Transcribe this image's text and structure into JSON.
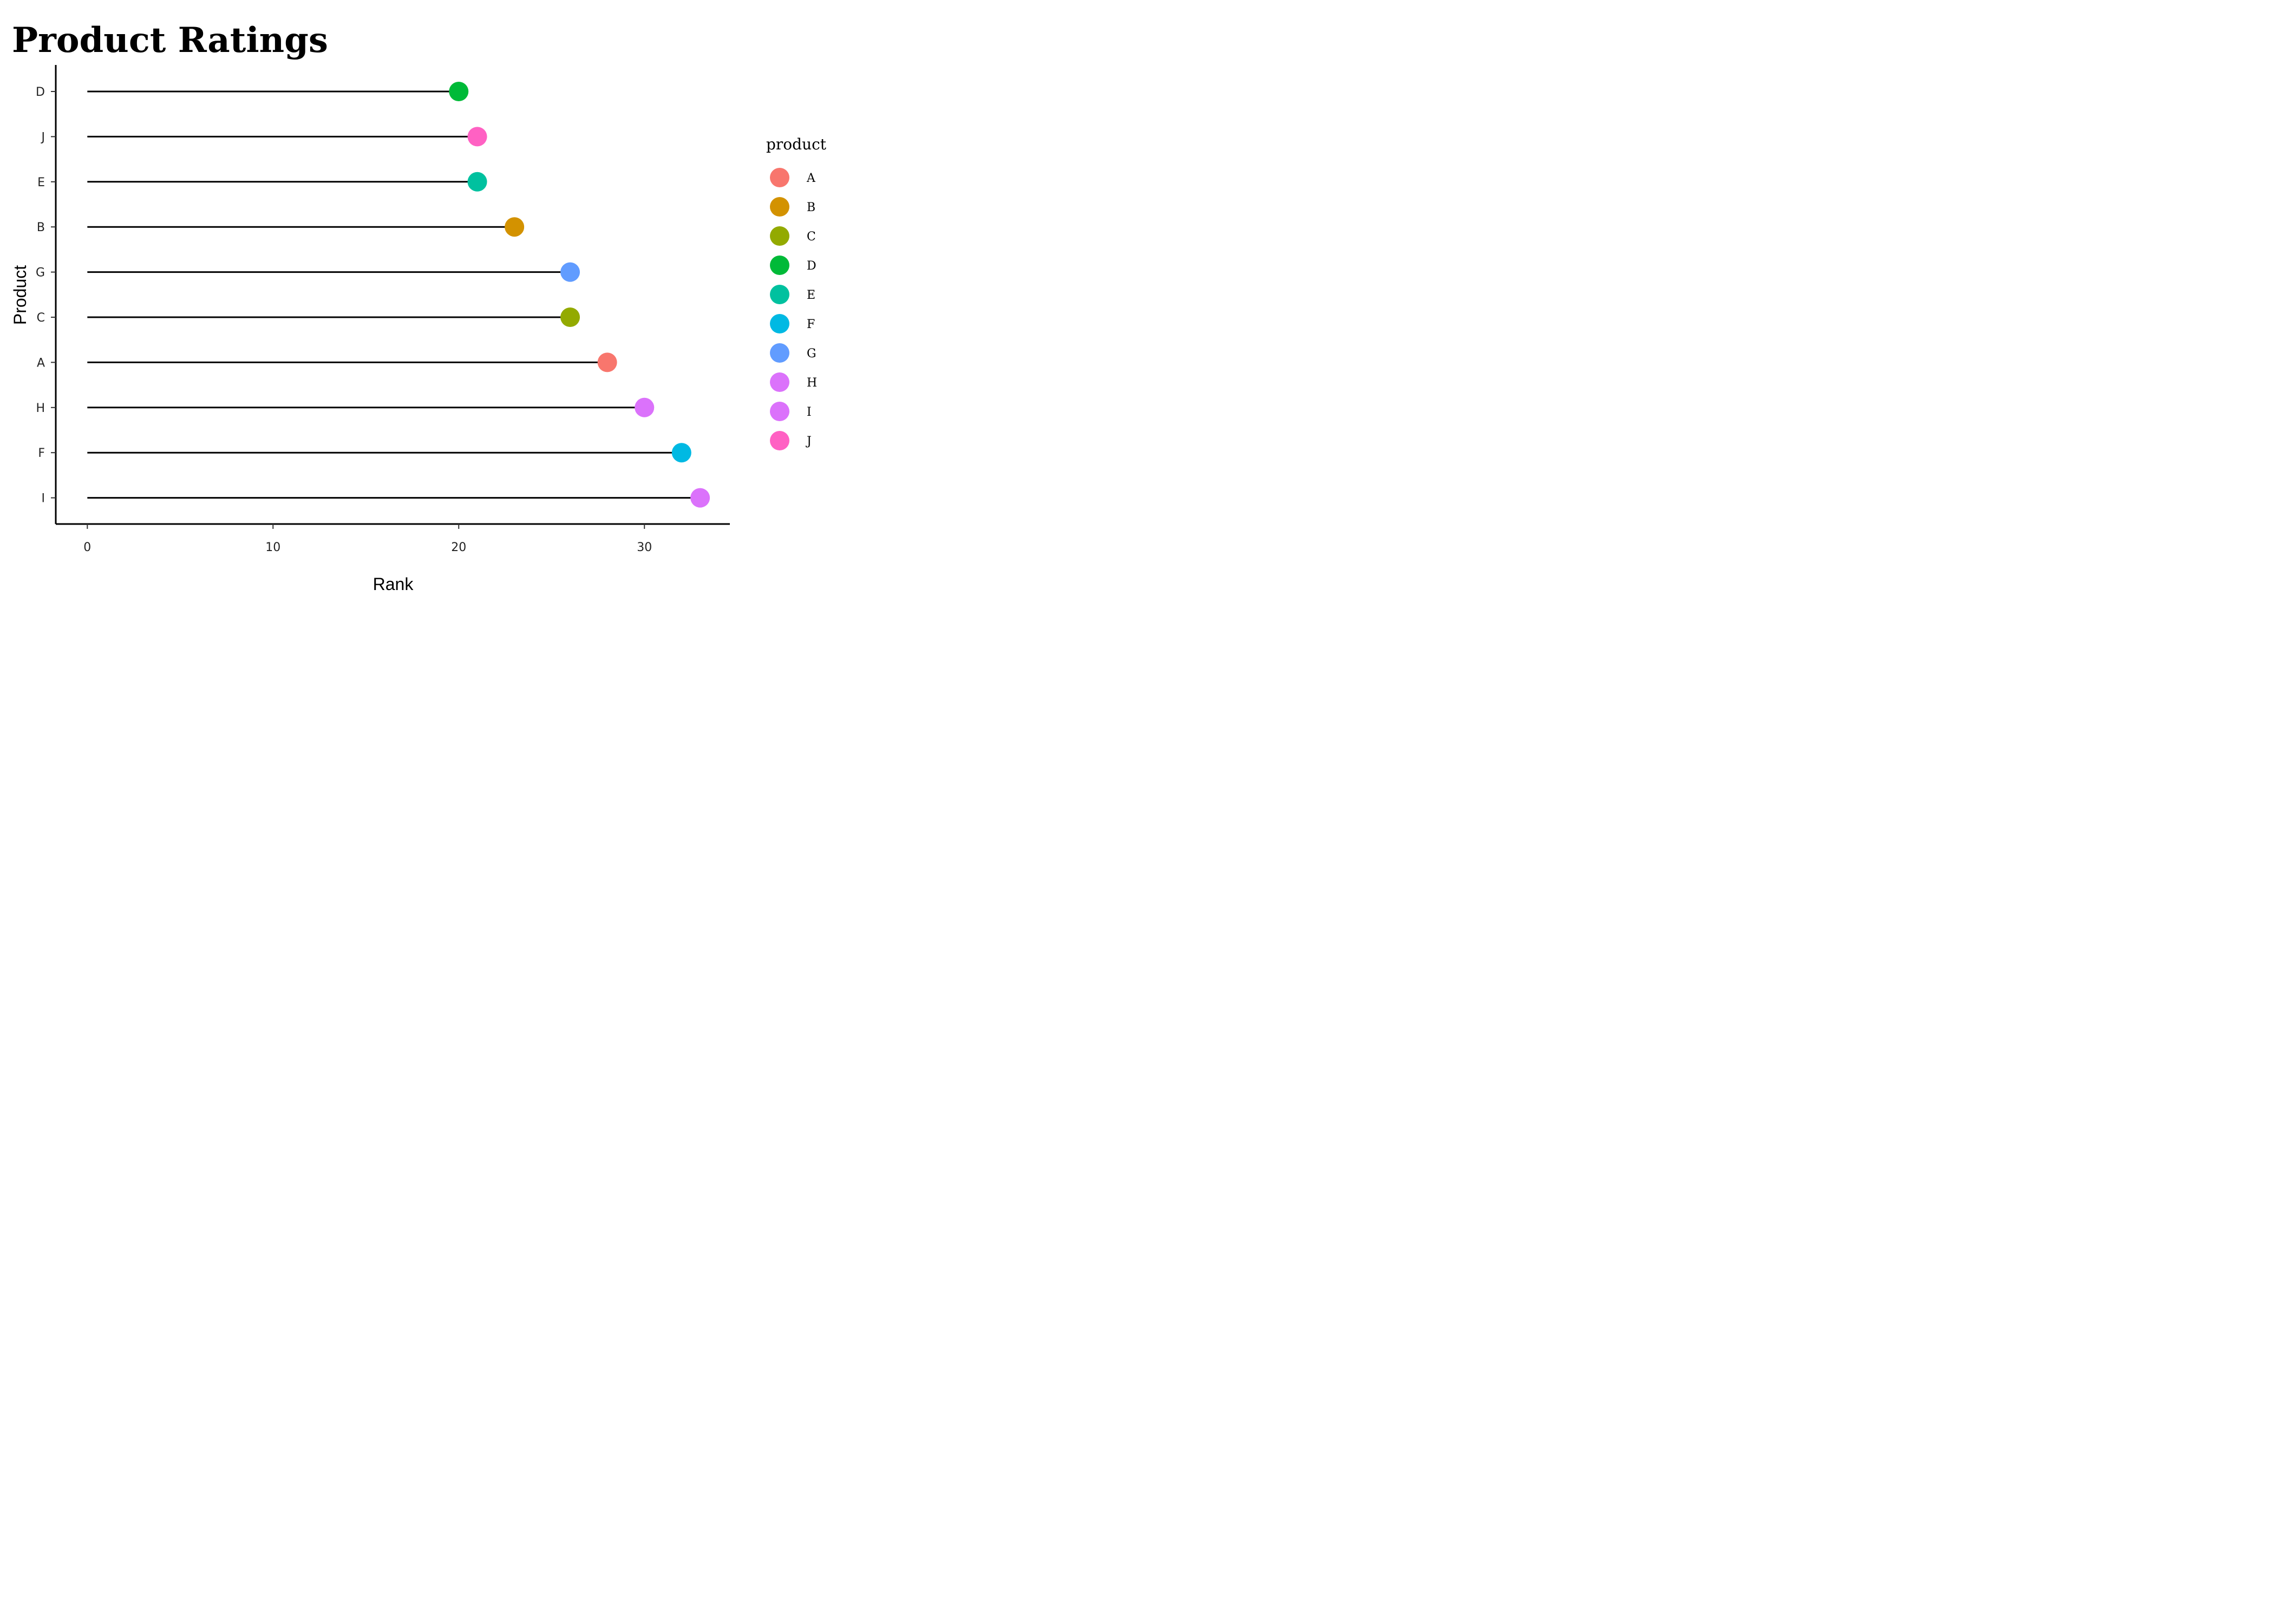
{
  "chart_data": {
    "type": "lollipop",
    "title": "Product Ratings",
    "xlabel": "Rank",
    "ylabel": "Product",
    "xlim": [
      -1.7,
      34.6
    ],
    "x_ticks": [
      0,
      10,
      20,
      30
    ],
    "grid": false,
    "legend_position": "right",
    "legend_title": "product",
    "legend_items": [
      "A",
      "B",
      "C",
      "D",
      "E",
      "F",
      "G",
      "H",
      "I",
      "J"
    ],
    "colors": {
      "A": "#F8766D",
      "B": "#D39200",
      "C": "#93AA00",
      "D": "#00BA38",
      "E": "#00C19F",
      "F": "#00B9E3",
      "G": "#619CFF",
      "H": "#DB72FB",
      "I": "#DB72FB",
      "J": "#FF61C3"
    },
    "categories": [
      "D",
      "J",
      "E",
      "B",
      "G",
      "C",
      "A",
      "H",
      "F",
      "I"
    ],
    "values": [
      20,
      21,
      21,
      23,
      26,
      26,
      28,
      30,
      32,
      33
    ]
  }
}
